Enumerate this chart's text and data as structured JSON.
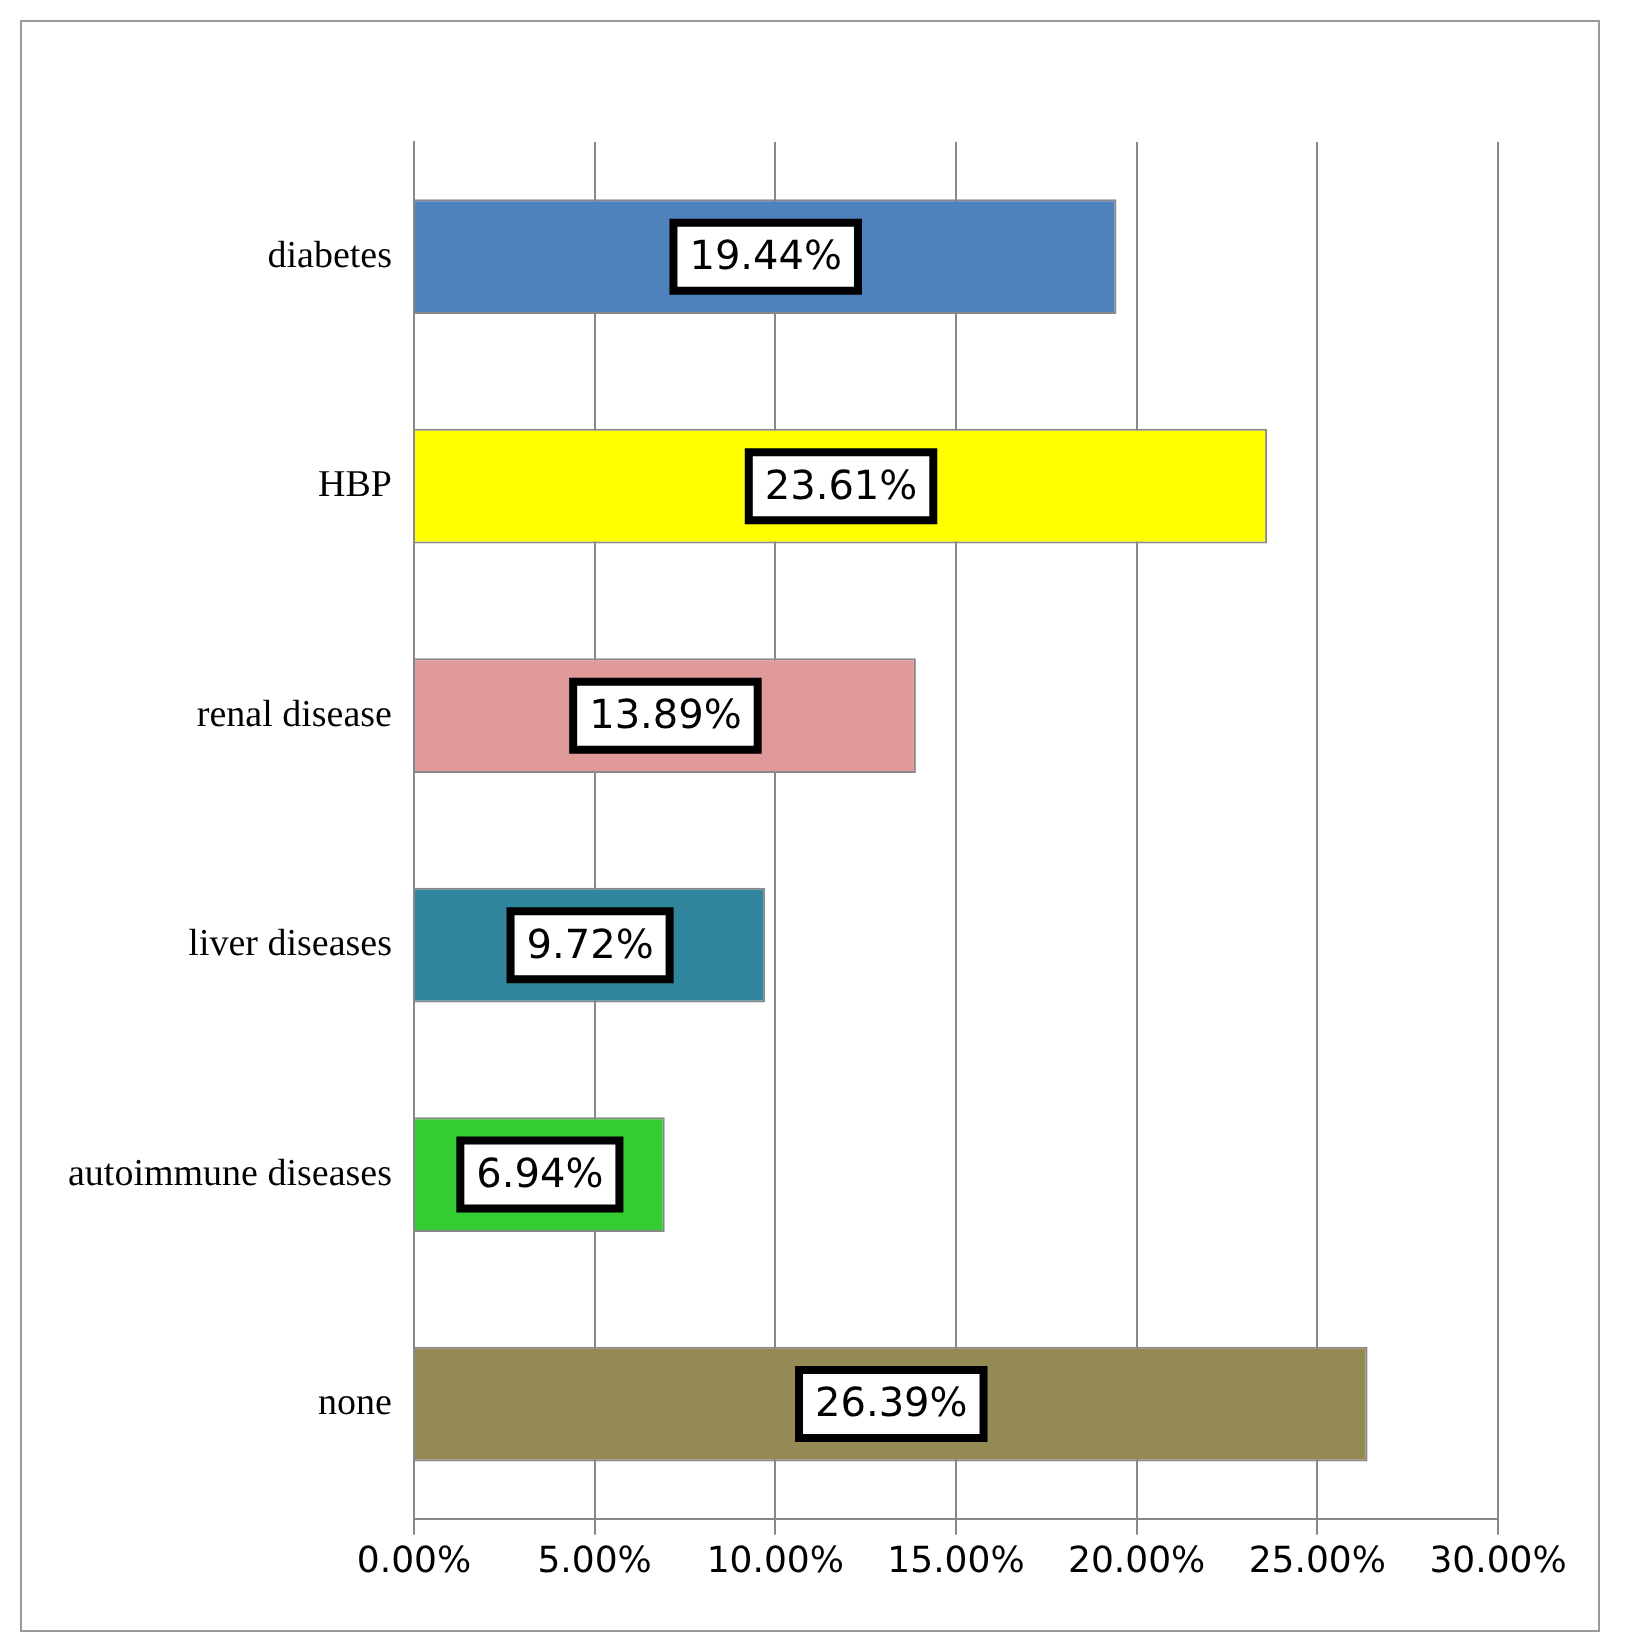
{
  "chart_data": {
    "type": "bar",
    "orientation": "horizontal",
    "categories": [
      "diabetes",
      "HBP",
      "renal disease",
      "liver diseases",
      "autoimmune diseases",
      "none"
    ],
    "values": [
      19.44,
      23.61,
      13.89,
      9.72,
      6.94,
      26.39
    ],
    "colors": [
      "#4f81bd",
      "#ffff00",
      "#e09a9a",
      "#31859c",
      "#33cc33",
      "#948a54"
    ],
    "value_labels": [
      "19.44%",
      "23.61%",
      "13.89%",
      "9.72%",
      "6.94%",
      "26.39%"
    ],
    "xlim": [
      0,
      30
    ],
    "xticks": [
      {
        "value": 0,
        "label": "0.00%"
      },
      {
        "value": 5,
        "label": "5.00%"
      },
      {
        "value": 10,
        "label": "10.00%"
      },
      {
        "value": 15,
        "label": "15.00%"
      },
      {
        "value": 20,
        "label": "20.00%"
      },
      {
        "value": 25,
        "label": "25.00%"
      },
      {
        "value": 30,
        "label": "30.00%"
      }
    ],
    "grid": "x"
  }
}
